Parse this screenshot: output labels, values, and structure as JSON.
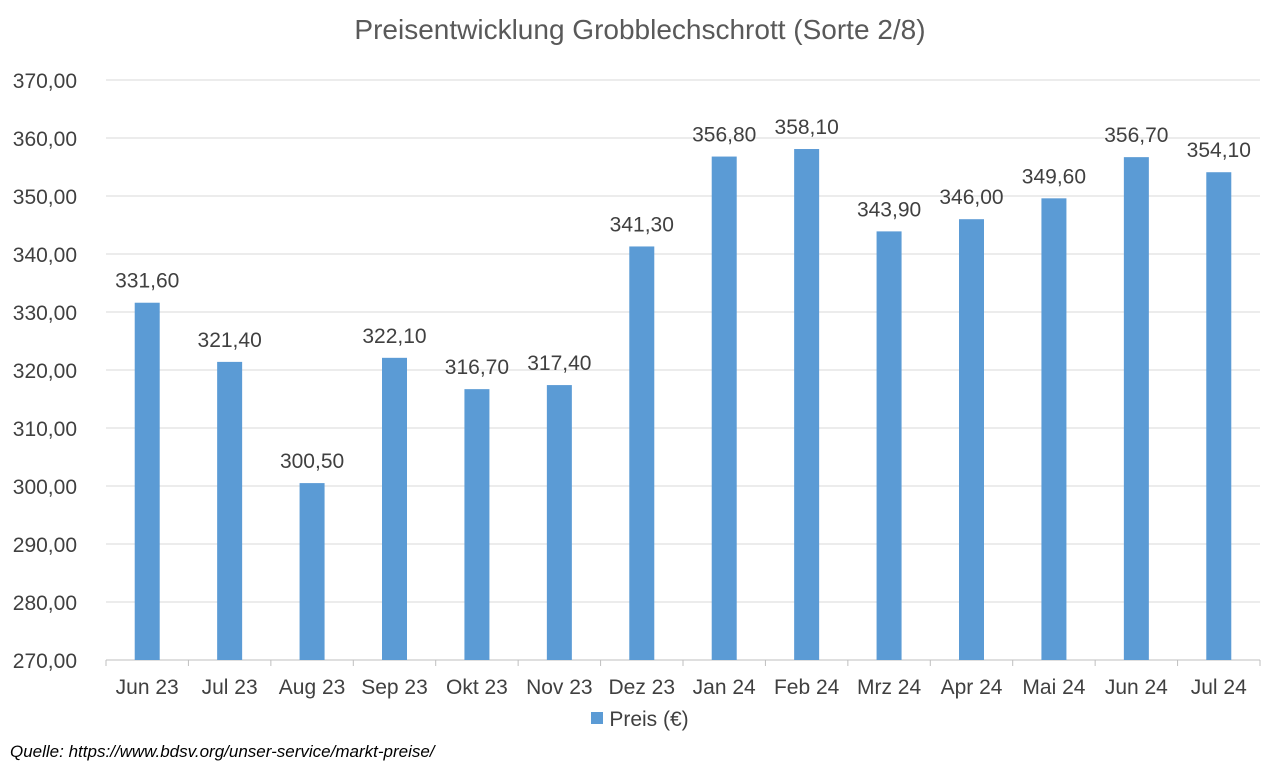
{
  "chart_data": {
    "type": "bar",
    "title": "Preisentwicklung Grobblechschrott (Sorte 2/8)",
    "categories": [
      "Jun 23",
      "Jul 23",
      "Aug 23",
      "Sep 23",
      "Okt 23",
      "Nov 23",
      "Dez 23",
      "Jan 24",
      "Feb 24",
      "Mrz 24",
      "Apr 24",
      "Mai 24",
      "Jun 24",
      "Jul 24"
    ],
    "series": [
      {
        "name": "Preis (€)",
        "values": [
          331.6,
          321.4,
          300.5,
          322.1,
          316.7,
          317.4,
          341.3,
          356.8,
          358.1,
          343.9,
          346.0,
          349.6,
          356.7,
          354.1
        ],
        "labels": [
          "331,60",
          "321,40",
          "300,50",
          "322,10",
          "316,70",
          "317,40",
          "341,30",
          "356,80",
          "358,10",
          "343,90",
          "346,00",
          "349,60",
          "356,70",
          "354,10"
        ]
      }
    ],
    "ylim": [
      270,
      370
    ],
    "yticks": [
      270,
      280,
      290,
      300,
      310,
      320,
      330,
      340,
      350,
      360,
      370
    ],
    "ytick_labels": [
      "270,00",
      "280,00",
      "290,00",
      "300,00",
      "310,00",
      "320,00",
      "330,00",
      "340,00",
      "350,00",
      "360,00",
      "370,00"
    ],
    "xlabel": "",
    "ylabel": "",
    "grid": true,
    "legend_position": "bottom",
    "bar_color": "#5b9bd5",
    "grid_color": "#d9d9d9"
  },
  "source_note": "Quelle: https://www.bdsv.org/unser-service/markt-preise/"
}
